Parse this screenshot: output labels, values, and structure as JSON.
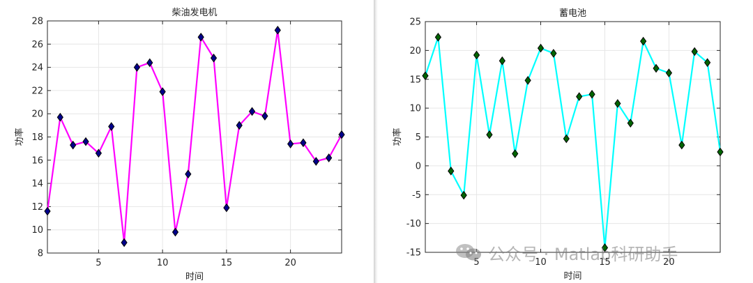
{
  "chart_data": [
    {
      "type": "line",
      "title": "柴油发电机",
      "xlabel": "时间",
      "ylabel": "功率",
      "xlim": [
        1,
        24
      ],
      "ylim": [
        8,
        28
      ],
      "xticks": [
        5,
        10,
        15,
        20
      ],
      "yticks": [
        8,
        10,
        12,
        14,
        16,
        18,
        20,
        22,
        24,
        26,
        28
      ],
      "grid": true,
      "line_color": "#ff00ff",
      "marker_color": "#00008b",
      "marker": "diamond",
      "x": [
        1,
        2,
        3,
        4,
        5,
        6,
        7,
        8,
        9,
        10,
        11,
        12,
        13,
        14,
        15,
        16,
        17,
        18,
        19,
        20,
        21,
        22,
        23,
        24
      ],
      "y": [
        11.6,
        19.7,
        17.3,
        17.6,
        16.6,
        18.9,
        8.9,
        24.0,
        24.4,
        21.9,
        9.8,
        14.8,
        26.6,
        24.8,
        11.9,
        19.0,
        20.2,
        19.8,
        27.2,
        17.4,
        17.5,
        15.9,
        16.2,
        18.2
      ]
    },
    {
      "type": "line",
      "title": "蓄电池",
      "xlabel": "时间",
      "ylabel": "功率",
      "xlim": [
        1,
        24
      ],
      "ylim": [
        -15,
        25
      ],
      "xticks": [
        5,
        10,
        15,
        20
      ],
      "yticks": [
        -15,
        -10,
        -5,
        0,
        5,
        10,
        15,
        20,
        25
      ],
      "grid": true,
      "line_color": "#00ffff",
      "marker_color": "#006400",
      "marker": "diamond",
      "x": [
        1,
        2,
        3,
        4,
        5,
        6,
        7,
        8,
        9,
        10,
        11,
        12,
        13,
        14,
        15,
        16,
        17,
        18,
        19,
        20,
        21,
        22,
        23,
        24
      ],
      "y": [
        15.6,
        22.3,
        -0.9,
        -5.1,
        19.2,
        5.4,
        18.2,
        2.1,
        14.8,
        20.4,
        19.5,
        4.7,
        12.0,
        12.4,
        -14.2,
        10.8,
        7.4,
        21.6,
        16.9,
        16.1,
        3.6,
        19.8,
        17.9,
        2.4
      ]
    }
  ],
  "watermark": {
    "text": "公众号 · Matlab科研助手"
  }
}
